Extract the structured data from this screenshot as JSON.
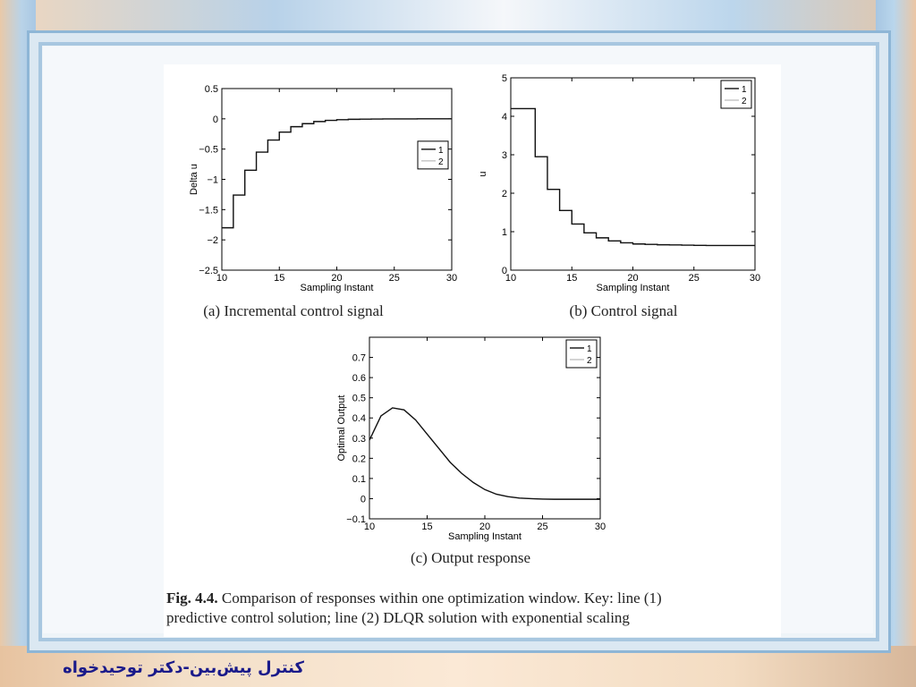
{
  "caption": {
    "label": "Fig. 4.4.",
    "line1": "Comparison of responses within one optimization window. Key: line (1)",
    "line2": "predictive control solution; line (2) DLQR solution with exponential scaling"
  },
  "footer_text": "کنترل پیش‌بین-دکتر توحیدخواه",
  "chart_data": [
    {
      "type": "line",
      "subcaption": "(a) Incremental control signal",
      "xlabel": "Sampling Instant",
      "ylabel": "Delta u",
      "xlim": [
        10,
        30
      ],
      "ylim": [
        -2.5,
        0.5
      ],
      "xticks": [
        10,
        15,
        20,
        25,
        30
      ],
      "yticks": [
        0.5,
        0,
        -0.5,
        -1,
        -1.5,
        -2,
        -2.5
      ],
      "xtick_labels": [
        "10",
        "15",
        "20",
        "25",
        "30"
      ],
      "ytick_labels": [
        "0.5",
        "0",
        "−0.5",
        "−1",
        "−1.5",
        "−2",
        "−2.5"
      ],
      "step": true,
      "legend": [
        "1",
        "2"
      ],
      "legend_position": "center-right",
      "series": [
        {
          "name": "1",
          "x": [
            10,
            11,
            12,
            13,
            14,
            15,
            16,
            17,
            18,
            19,
            20,
            21,
            22,
            23,
            24,
            25,
            26,
            27,
            28,
            29,
            30
          ],
          "y": [
            -1.8,
            -1.26,
            -0.85,
            -0.55,
            -0.35,
            -0.22,
            -0.13,
            -0.08,
            -0.045,
            -0.025,
            -0.015,
            -0.008,
            -0.005,
            -0.003,
            -0.002,
            -0.001,
            -0.001,
            0,
            0,
            0,
            0
          ]
        },
        {
          "name": "2",
          "x": [
            10,
            11,
            12,
            13,
            14,
            15,
            16,
            17,
            18,
            19,
            20,
            21,
            22,
            23,
            24,
            25,
            26,
            27,
            28,
            29,
            30
          ],
          "y": [
            -1.8,
            -1.26,
            -0.85,
            -0.55,
            -0.35,
            -0.22,
            -0.13,
            -0.08,
            -0.045,
            -0.025,
            -0.015,
            -0.008,
            -0.005,
            -0.003,
            -0.002,
            -0.001,
            -0.001,
            0,
            0,
            0,
            0
          ]
        }
      ]
    },
    {
      "type": "line",
      "subcaption": "(b) Control signal",
      "xlabel": "Sampling Instant",
      "ylabel": "u",
      "xlim": [
        10,
        30
      ],
      "ylim": [
        0,
        5
      ],
      "xticks": [
        10,
        15,
        20,
        25,
        30
      ],
      "yticks": [
        5,
        4,
        3,
        2,
        1,
        0
      ],
      "xtick_labels": [
        "10",
        "15",
        "20",
        "25",
        "30"
      ],
      "ytick_labels": [
        "5",
        "4",
        "3",
        "2",
        "1",
        "0"
      ],
      "step": true,
      "legend": [
        "1",
        "2"
      ],
      "legend_position": "top-right",
      "series": [
        {
          "name": "1",
          "x": [
            10,
            11,
            12,
            13,
            14,
            15,
            16,
            17,
            18,
            19,
            20,
            21,
            22,
            23,
            24,
            25,
            26,
            27,
            28,
            29,
            30
          ],
          "y": [
            4.2,
            4.2,
            2.95,
            2.1,
            1.55,
            1.2,
            0.97,
            0.84,
            0.76,
            0.71,
            0.68,
            0.67,
            0.66,
            0.655,
            0.65,
            0.645,
            0.64,
            0.64,
            0.64,
            0.64,
            0.64
          ]
        },
        {
          "name": "2",
          "x": [
            10,
            11,
            12,
            13,
            14,
            15,
            16,
            17,
            18,
            19,
            20,
            21,
            22,
            23,
            24,
            25,
            26,
            27,
            28,
            29,
            30
          ],
          "y": [
            4.2,
            4.2,
            2.95,
            2.1,
            1.55,
            1.2,
            0.97,
            0.84,
            0.76,
            0.71,
            0.68,
            0.67,
            0.66,
            0.655,
            0.65,
            0.645,
            0.64,
            0.64,
            0.64,
            0.64,
            0.64
          ]
        }
      ]
    },
    {
      "type": "line",
      "subcaption": "(c) Output response",
      "xlabel": "Sampling Instant",
      "ylabel": "Optimal Output",
      "xlim": [
        10,
        30
      ],
      "ylim": [
        -0.1,
        0.8
      ],
      "xticks": [
        10,
        15,
        20,
        25,
        30
      ],
      "yticks": [
        0.7,
        0.6,
        0.5,
        0.4,
        0.3,
        0.2,
        0.1,
        0,
        -0.1
      ],
      "xtick_labels": [
        "10",
        "15",
        "20",
        "25",
        "30"
      ],
      "ytick_labels": [
        "0.7",
        "0.6",
        "0.5",
        "0.4",
        "0.3",
        "0.2",
        "0.1",
        "0",
        "−0.1"
      ],
      "step": false,
      "legend": [
        "1",
        "2"
      ],
      "legend_position": "top-right",
      "series": [
        {
          "name": "1",
          "x": [
            10,
            11,
            12,
            13,
            14,
            15,
            16,
            17,
            18,
            19,
            20,
            21,
            22,
            23,
            24,
            25,
            26,
            27,
            28,
            29,
            30
          ],
          "y": [
            0.29,
            0.41,
            0.45,
            0.44,
            0.39,
            0.32,
            0.25,
            0.18,
            0.125,
            0.08,
            0.045,
            0.022,
            0.01,
            0.003,
            0.0,
            -0.002,
            -0.003,
            -0.003,
            -0.003,
            -0.003,
            -0.003
          ]
        },
        {
          "name": "2",
          "x": [
            10,
            11,
            12,
            13,
            14,
            15,
            16,
            17,
            18,
            19,
            20,
            21,
            22,
            23,
            24,
            25,
            26,
            27,
            28,
            29,
            30
          ],
          "y": [
            0.29,
            0.41,
            0.45,
            0.44,
            0.39,
            0.32,
            0.25,
            0.18,
            0.125,
            0.08,
            0.045,
            0.022,
            0.01,
            0.003,
            0.0,
            -0.002,
            -0.003,
            -0.003,
            -0.003,
            -0.003,
            -0.003
          ]
        }
      ]
    }
  ]
}
